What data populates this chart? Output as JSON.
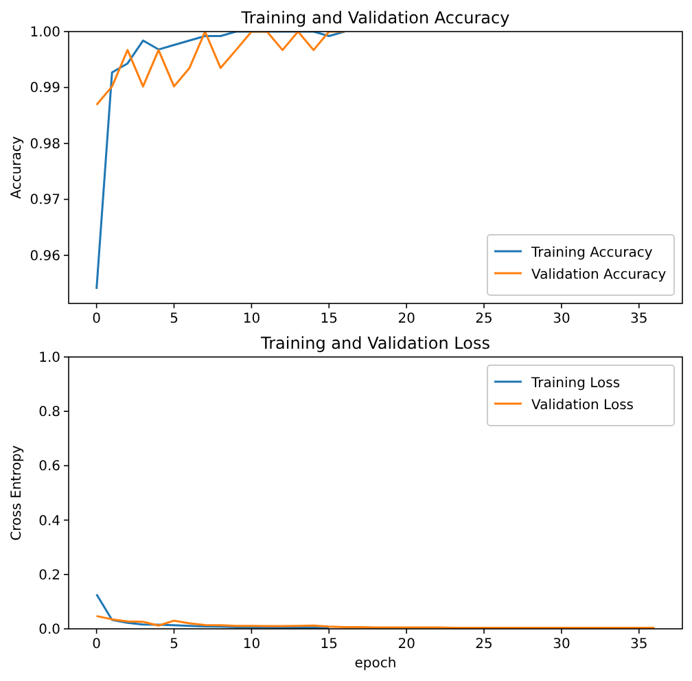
{
  "chart_data": [
    {
      "type": "line",
      "title": "Training and Validation Accuracy",
      "ylabel": "Accuracy",
      "x": [
        0,
        1,
        2,
        3,
        4,
        5,
        6,
        7,
        8,
        9,
        10,
        11,
        12,
        13,
        14,
        15,
        16
      ],
      "series": [
        {
          "name": "Training Accuracy",
          "color": "#1f77b4",
          "values": [
            0.954,
            0.9927,
            0.9943,
            0.9984,
            0.9968,
            0.9976,
            0.9984,
            0.9992,
            0.9992,
            1.0,
            1.0,
            1.0,
            1.0,
            1.0,
            1.0,
            0.9992,
            1.0
          ]
        },
        {
          "name": "Validation Accuracy",
          "color": "#ff7f0e",
          "values": [
            0.9869,
            0.9902,
            0.9967,
            0.9902,
            0.9967,
            0.9902,
            0.9935,
            1.0,
            0.9935,
            0.9967,
            1.0,
            1.0,
            0.9967,
            1.0,
            0.9967,
            1.0,
            1.0
          ]
        }
      ],
      "xlim": [
        -1.8,
        37.8
      ],
      "xticks": [
        0,
        5,
        10,
        15,
        20,
        25,
        30,
        35
      ],
      "ylim": [
        0.9514,
        1.0
      ],
      "yticks": [
        {
          "value": 0.96,
          "label": "0.96"
        },
        {
          "value": 0.97,
          "label": "0.97"
        },
        {
          "value": 0.98,
          "label": "0.98"
        },
        {
          "value": 0.99,
          "label": "0.99"
        },
        {
          "value": 1.0,
          "label": "1.00"
        }
      ],
      "legend": "bottom right",
      "grid": false
    },
    {
      "type": "line",
      "title": "Training and Validation Loss",
      "xlabel": "epoch",
      "ylabel": "Cross Entropy",
      "x": [
        0,
        1,
        2,
        3,
        4,
        5,
        6,
        7,
        8,
        9,
        10,
        11,
        12,
        13,
        14,
        15,
        16,
        17,
        18,
        19,
        20,
        21,
        22,
        23,
        24,
        25,
        26,
        27,
        28,
        29,
        30,
        31,
        32,
        33,
        34,
        35,
        36
      ],
      "series": [
        {
          "name": "Training Loss",
          "color": "#1f77b4",
          "values": [
            0.127,
            0.033,
            0.022,
            0.016,
            0.015,
            0.013,
            0.011,
            0.009,
            0.008,
            0.006,
            0.005,
            0.005,
            0.004,
            0.004,
            0.004,
            0.003,
            null,
            null,
            null,
            null,
            null,
            null,
            null,
            null,
            null,
            null,
            null,
            null,
            null,
            null,
            null,
            null,
            null,
            null,
            null,
            null,
            null
          ]
        },
        {
          "name": "Validation Loss",
          "color": "#ff7f0e",
          "values": [
            0.047,
            0.035,
            0.027,
            0.026,
            0.012,
            0.03,
            0.02,
            0.014,
            0.013,
            0.011,
            0.011,
            0.01,
            0.01,
            0.011,
            0.012,
            0.008,
            0.006,
            0.006,
            0.005,
            0.005,
            0.005,
            0.005,
            0.005,
            0.004,
            0.004,
            0.004,
            0.004,
            0.004,
            0.004,
            0.004,
            0.004,
            0.004,
            0.004,
            0.004,
            0.004,
            0.004,
            0.004
          ]
        }
      ],
      "xlim": [
        -1.8,
        37.8
      ],
      "xticks": [
        0,
        5,
        10,
        15,
        20,
        25,
        30,
        35
      ],
      "ylim": [
        0,
        1
      ],
      "yticks": [
        {
          "value": 0,
          "label": "0.0"
        },
        {
          "value": 0.2,
          "label": "0.2"
        },
        {
          "value": 0.4,
          "label": "0.4"
        },
        {
          "value": 0.6,
          "label": "0.6"
        },
        {
          "value": 0.8,
          "label": "0.8"
        },
        {
          "value": 1,
          "label": "1.0"
        }
      ],
      "legend": "top right",
      "grid": false
    }
  ]
}
